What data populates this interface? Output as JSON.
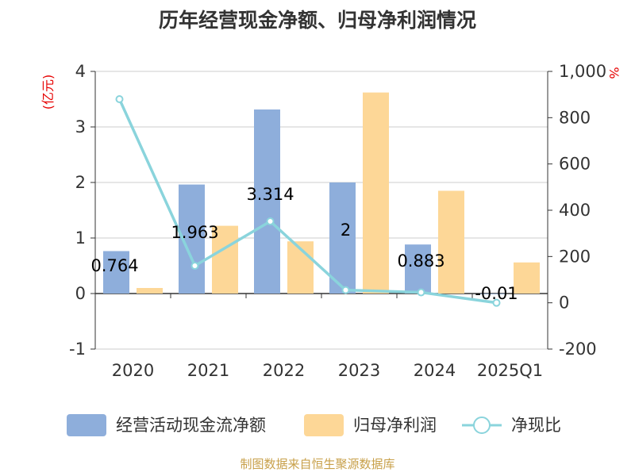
{
  "chart_data": {
    "type": "bar",
    "title": "历年经营现金净额、归母净利润情况",
    "categories": [
      "2020",
      "2021",
      "2022",
      "2023",
      "2024",
      "2025Q1"
    ],
    "y_left": {
      "unit": "(亿元)",
      "ylim": [
        -1,
        4
      ],
      "ticks": [
        "-1",
        "0",
        "1",
        "2",
        "3",
        "4"
      ]
    },
    "y_right": {
      "unit": "%",
      "ylim": [
        -200,
        1000
      ],
      "ticks": [
        "-200",
        "0",
        "200",
        "400",
        "600",
        "800",
        "1,000"
      ]
    },
    "grid": true,
    "legend_position": "bottom",
    "series": [
      {
        "name": "经营活动现金流净额",
        "type": "bar",
        "axis": "left",
        "color": "#8eaedb",
        "values": [
          0.764,
          1.963,
          3.314,
          2,
          0.883,
          -0.01
        ],
        "labels": [
          "0.764",
          "1.963",
          "3.314",
          "2",
          "0.883",
          "-0.01"
        ]
      },
      {
        "name": "归母净利润",
        "type": "bar",
        "axis": "left",
        "color": "#fdd797",
        "values": [
          0.1,
          1.22,
          0.94,
          3.62,
          1.85,
          0.56
        ]
      },
      {
        "name": "净现比",
        "type": "line",
        "axis": "right",
        "color": "#8ad4dc",
        "values": [
          880,
          160,
          352,
          55,
          45,
          0
        ]
      }
    ]
  },
  "source": "制图数据来自恒生聚源数据库"
}
